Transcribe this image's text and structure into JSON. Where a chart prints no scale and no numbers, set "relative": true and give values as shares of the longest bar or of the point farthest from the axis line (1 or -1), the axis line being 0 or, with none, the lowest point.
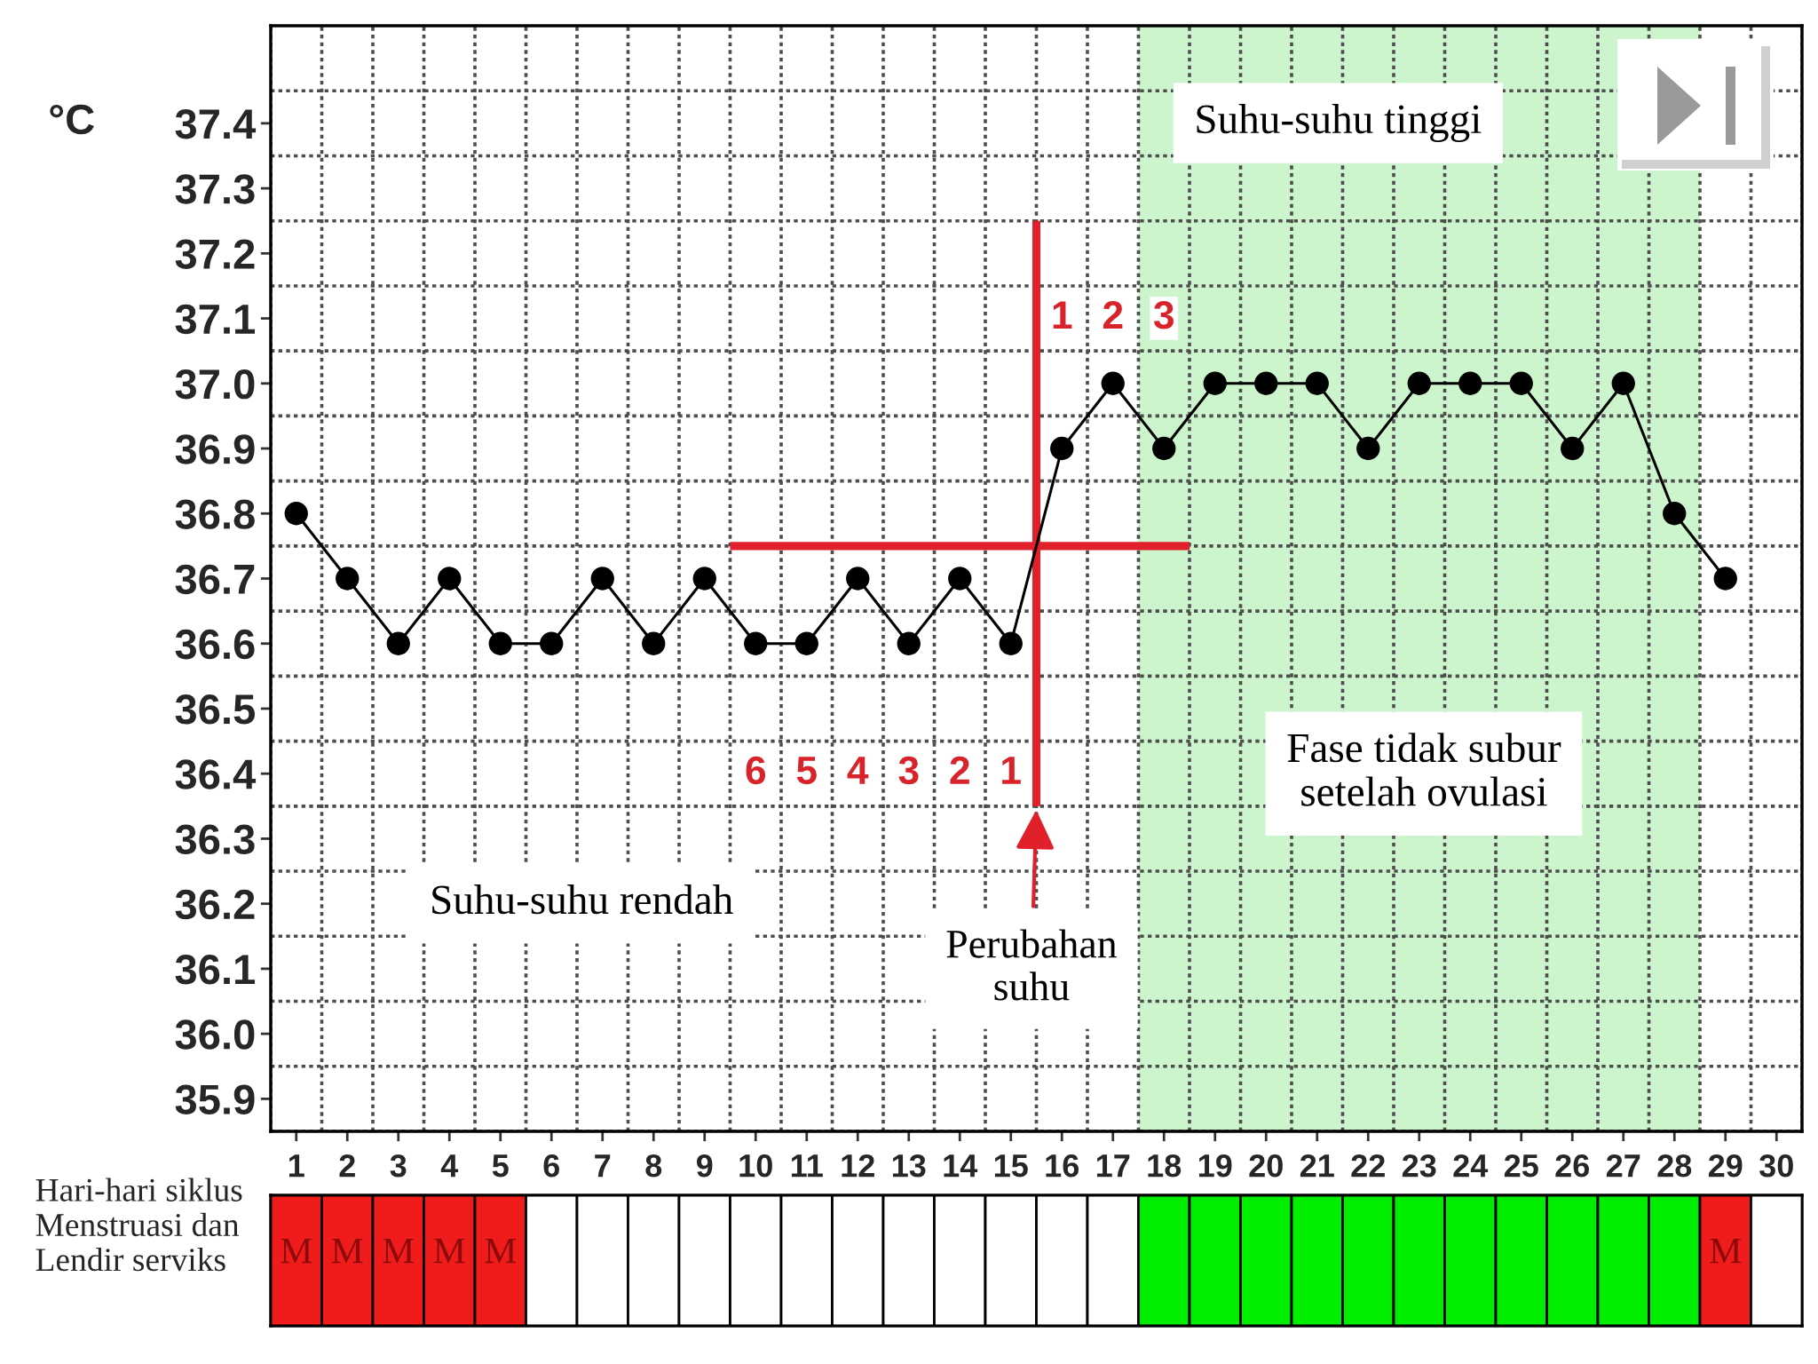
{
  "chart_data": [
    {
      "type": "line",
      "ylabel": "°C",
      "x": [
        1,
        2,
        3,
        4,
        5,
        6,
        7,
        8,
        9,
        10,
        11,
        12,
        13,
        14,
        15,
        16,
        17,
        18,
        19,
        20,
        21,
        22,
        23,
        24,
        25,
        26,
        27,
        28,
        29
      ],
      "series": [
        {
          "color": "#000000",
          "marker": "circle",
          "values": [
            36.8,
            36.7,
            36.6,
            36.7,
            36.6,
            36.6,
            36.7,
            36.6,
            36.7,
            36.6,
            36.6,
            36.7,
            36.6,
            36.7,
            36.6,
            36.9,
            37.0,
            36.9,
            37.0,
            37.0,
            37.0,
            36.9,
            37.0,
            37.0,
            37.0,
            36.9,
            37.0,
            36.8,
            36.7
          ]
        },
        {
          "color": "#e0202a",
          "marker": "none",
          "x": [
            9.5,
            18.5
          ],
          "values": [
            36.75,
            36.75
          ]
        },
        {
          "color": "#e0202a",
          "marker": "none",
          "x": [
            15.5,
            15.5
          ],
          "values": [
            37.25,
            36.35
          ]
        }
      ],
      "xlim": [
        0.5,
        30.5
      ],
      "xticks": [
        {
          "value": 0.5,
          "label": null
        },
        1,
        {
          "value": 1.5,
          "label": null
        },
        2,
        {
          "value": 2.5,
          "label": null
        },
        3,
        {
          "value": 3.5,
          "label": null
        },
        4,
        {
          "value": 4.5,
          "label": null
        },
        5,
        {
          "value": 5.5,
          "label": null
        },
        6,
        {
          "value": 6.5,
          "label": null
        },
        7,
        {
          "value": 7.5,
          "label": null
        },
        8,
        {
          "value": 8.5,
          "label": null
        },
        9,
        {
          "value": 9.5,
          "label": null
        },
        10,
        {
          "value": 10.5,
          "label": null
        },
        11,
        {
          "value": 11.5,
          "label": null
        },
        12,
        {
          "value": 12.5,
          "label": null
        },
        13,
        {
          "value": 13.5,
          "label": null
        },
        14,
        {
          "value": 14.5,
          "label": null
        },
        15,
        {
          "value": 15.5,
          "label": null
        },
        16,
        {
          "value": 16.5,
          "label": null
        },
        17,
        {
          "value": 17.5,
          "label": null
        },
        18,
        {
          "value": 18.5,
          "label": null
        },
        19,
        {
          "value": 19.5,
          "label": null
        },
        20,
        {
          "value": 20.5,
          "label": null
        },
        21,
        {
          "value": 21.5,
          "label": null
        },
        22,
        {
          "value": 22.5,
          "label": null
        },
        23,
        {
          "value": 23.5,
          "label": null
        },
        24,
        {
          "value": 24.5,
          "label": null
        },
        25,
        {
          "value": 25.5,
          "label": null
        },
        26,
        {
          "value": 26.5,
          "label": null
        },
        27,
        {
          "value": 27.5,
          "label": null
        },
        28,
        {
          "value": 28.5,
          "label": null
        },
        29,
        {
          "value": 29.5,
          "label": null
        },
        30,
        {
          "value": 30.5,
          "label": null
        }
      ],
      "ylim": [
        35.85,
        37.55
      ],
      "yticks": [
        {
          "value": 35.85,
          "label": null
        },
        35.9,
        {
          "value": 35.95,
          "label": null
        },
        {
          "value": 36.0,
          "label": "36.0"
        },
        {
          "value": 36.05,
          "label": null
        },
        36.1,
        {
          "value": 36.15,
          "label": null
        },
        36.2,
        {
          "value": 36.25,
          "label": null
        },
        36.3,
        {
          "value": 36.35,
          "label": null
        },
        36.4,
        {
          "value": 36.45,
          "label": null
        },
        36.5,
        {
          "value": 36.55,
          "label": null
        },
        36.6,
        {
          "value": 36.65,
          "label": null
        },
        36.7,
        {
          "value": 36.75,
          "label": null
        },
        36.8,
        {
          "value": 36.85,
          "label": null
        },
        36.9,
        {
          "value": 36.95,
          "label": null
        },
        {
          "value": 37.0,
          "label": "37.0"
        },
        {
          "value": 37.05,
          "label": null
        },
        37.1,
        {
          "value": 37.15,
          "label": null
        },
        37.2,
        {
          "value": 37.25,
          "label": null
        },
        37.3,
        {
          "value": 37.35,
          "label": null
        },
        37.4,
        {
          "value": 37.45,
          "label": null
        }
      ],
      "grid": true,
      "line_style": "solid",
      "bands": [
        {
          "axis": "x",
          "from": 17.5,
          "to": 28.5,
          "color": "#cdf5cd"
        }
      ],
      "annotations": [
        "Suhu-suhu tinggi",
        "Suhu-suhu rendah",
        "Fase tidak subur\nsetelah ovulasi",
        {
          "text": "Perubahan\nsuhu",
          "x": 15.5,
          "y": 36.35
        },
        "6",
        "5",
        "4",
        "3",
        "2",
        "1",
        "1",
        "2",
        "3"
      ]
    },
    {
      "type": "bar",
      "relative": true,
      "ylabel": "Hari-hari siklus\nMenstruasi dan\nLendir serviks",
      "categories": [
        null,
        null,
        null,
        null,
        null,
        null,
        null,
        null,
        null,
        null,
        null,
        null,
        null,
        null,
        null,
        null,
        null,
        null,
        null,
        null,
        null,
        null,
        null,
        null,
        null,
        null,
        null,
        null,
        null,
        null
      ],
      "values": [
        1,
        1,
        1,
        1,
        1,
        1,
        1,
        1,
        1,
        1,
        1,
        1,
        1,
        1,
        1,
        1,
        1,
        1,
        1,
        1,
        1,
        1,
        1,
        1,
        1,
        1,
        1,
        1,
        1,
        1
      ],
      "colors": [
        "#f01c1c",
        "#f01c1c",
        "#f01c1c",
        "#f01c1c",
        "#f01c1c",
        "#ffffff",
        "#ffffff",
        "#ffffff",
        "#ffffff",
        "#ffffff",
        "#ffffff",
        "#ffffff",
        "#ffffff",
        "#ffffff",
        "#ffffff",
        "#ffffff",
        "#ffffff",
        "#00ee00",
        "#00ee00",
        "#00ee00",
        "#00ee00",
        "#00ee00",
        "#00ee00",
        "#00ee00",
        "#00ee00",
        "#00ee00",
        "#00ee00",
        "#00ee00",
        "#f01c1c",
        "#ffffff"
      ],
      "annotations": [
        "M",
        "M",
        "M",
        "M",
        "M",
        "M"
      ]
    }
  ]
}
